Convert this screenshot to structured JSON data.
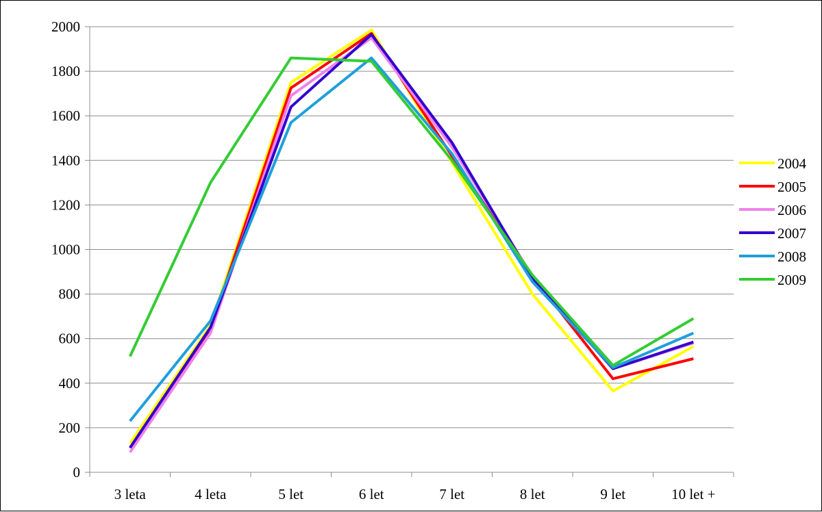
{
  "chart_data": {
    "type": "line",
    "title": "",
    "xlabel": "",
    "ylabel": "",
    "categories": [
      "3 leta",
      "4 leta",
      "5 let",
      "6 let",
      "7 let",
      "8 let",
      "9 let",
      "10 let +"
    ],
    "ylim": [
      0,
      2000
    ],
    "yticks": [
      0,
      200,
      400,
      600,
      800,
      1000,
      1200,
      1400,
      1600,
      1800,
      2000
    ],
    "grid": true,
    "legend_position": "right",
    "series": [
      {
        "name": "2004",
        "color": "#ffff00",
        "values": [
          130,
          660,
          1750,
          1985,
          1390,
          800,
          365,
          565
        ]
      },
      {
        "name": "2005",
        "color": "#ff0000",
        "values": [
          110,
          645,
          1725,
          1970,
          1420,
          880,
          420,
          510
        ]
      },
      {
        "name": "2006",
        "color": "#ee82ee",
        "values": [
          90,
          625,
          1690,
          1950,
          1460,
          880,
          465,
          580
        ]
      },
      {
        "name": "2007",
        "color": "#3300cc",
        "values": [
          110,
          650,
          1640,
          1965,
          1480,
          870,
          465,
          585
        ]
      },
      {
        "name": "2008",
        "color": "#1e9fdc",
        "values": [
          230,
          680,
          1570,
          1860,
          1430,
          855,
          470,
          625
        ]
      },
      {
        "name": "2009",
        "color": "#33cc33",
        "values": [
          520,
          1300,
          1860,
          1845,
          1400,
          885,
          480,
          690
        ]
      }
    ]
  }
}
